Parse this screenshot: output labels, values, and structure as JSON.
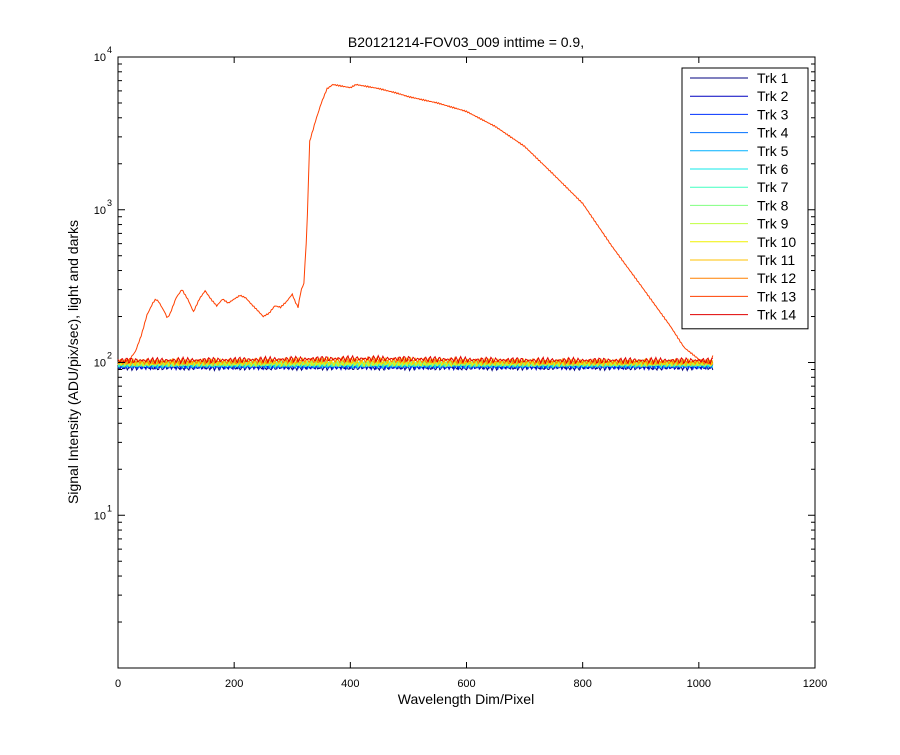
{
  "chart_data": {
    "type": "line",
    "title": "B20121214-FOV03_009 inttime = 0.9,",
    "xlabel": "Wavelength Dim/Pixel",
    "ylabel": "Signal Intensity (ADU/pix/sec), light and darks",
    "xlim": [
      0,
      1200
    ],
    "ylim": [
      1,
      10000
    ],
    "yscale": "log",
    "x_ticks": [
      "0",
      "200",
      "400",
      "600",
      "800",
      "1000",
      "1200"
    ],
    "y_ticks": [
      {
        "base": "10",
        "exp": "1",
        "value": 10
      },
      {
        "base": "10",
        "exp": "2",
        "value": 100
      },
      {
        "base": "10",
        "exp": "3",
        "value": 1000
      },
      {
        "base": "10",
        "exp": "4",
        "value": 10000
      }
    ],
    "grid": false,
    "legend_position": "top-right",
    "series": [
      {
        "name": "Trk 1",
        "color": "#00007f",
        "level": 93
      },
      {
        "name": "Trk 2",
        "color": "#0000c0",
        "level": 94
      },
      {
        "name": "Trk 3",
        "color": "#0030ff",
        "level": 95
      },
      {
        "name": "Trk 4",
        "color": "#0070ff",
        "level": 96
      },
      {
        "name": "Trk 5",
        "color": "#00b0ff",
        "level": 97
      },
      {
        "name": "Trk 6",
        "color": "#10e8e8",
        "level": 97
      },
      {
        "name": "Trk 7",
        "color": "#40ffc0",
        "level": 98
      },
      {
        "name": "Trk 8",
        "color": "#80ff80",
        "level": 98
      },
      {
        "name": "Trk 9",
        "color": "#c0ff40",
        "level": 99
      },
      {
        "name": "Trk 10",
        "color": "#f0f000",
        "level": 99
      },
      {
        "name": "Trk 11",
        "color": "#ffc000",
        "level": 100
      },
      {
        "name": "Trk 12",
        "color": "#ff8000",
        "level": 101
      },
      {
        "name": "Trk 13",
        "color": "#ff4000",
        "level": 102,
        "points": [
          [
            0,
            100
          ],
          [
            10,
            101
          ],
          [
            20,
            105
          ],
          [
            30,
            118
          ],
          [
            40,
            150
          ],
          [
            50,
            205
          ],
          [
            60,
            245
          ],
          [
            65,
            260
          ],
          [
            70,
            250
          ],
          [
            80,
            215
          ],
          [
            85,
            195
          ],
          [
            90,
            210
          ],
          [
            100,
            265
          ],
          [
            110,
            300
          ],
          [
            120,
            260
          ],
          [
            130,
            215
          ],
          [
            140,
            260
          ],
          [
            150,
            295
          ],
          [
            160,
            260
          ],
          [
            170,
            235
          ],
          [
            180,
            260
          ],
          [
            190,
            245
          ],
          [
            200,
            260
          ],
          [
            210,
            275
          ],
          [
            220,
            265
          ],
          [
            230,
            240
          ],
          [
            240,
            220
          ],
          [
            250,
            200
          ],
          [
            260,
            210
          ],
          [
            270,
            235
          ],
          [
            280,
            230
          ],
          [
            290,
            250
          ],
          [
            300,
            280
          ],
          [
            305,
            250
          ],
          [
            310,
            230
          ],
          [
            315,
            295
          ],
          [
            320,
            330
          ],
          [
            325,
            700
          ],
          [
            330,
            2800
          ],
          [
            340,
            3800
          ],
          [
            350,
            5000
          ],
          [
            360,
            6200
          ],
          [
            370,
            6600
          ],
          [
            380,
            6500
          ],
          [
            400,
            6300
          ],
          [
            410,
            6600
          ],
          [
            420,
            6500
          ],
          [
            450,
            6200
          ],
          [
            480,
            5800
          ],
          [
            500,
            5500
          ],
          [
            550,
            5000
          ],
          [
            600,
            4400
          ],
          [
            650,
            3500
          ],
          [
            700,
            2600
          ],
          [
            750,
            1700
          ],
          [
            800,
            1100
          ],
          [
            850,
            580
          ],
          [
            900,
            320
          ],
          [
            950,
            175
          ],
          [
            975,
            125
          ],
          [
            1000,
            105
          ],
          [
            1020,
            98
          ],
          [
            1025,
            115
          ]
        ]
      },
      {
        "name": "Trk 14",
        "color": "#e00000",
        "level": 103
      }
    ]
  }
}
